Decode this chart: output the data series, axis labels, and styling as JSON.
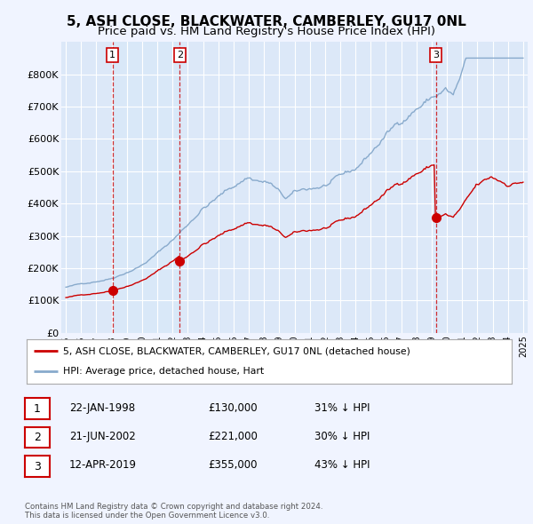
{
  "title": "5, ASH CLOSE, BLACKWATER, CAMBERLEY, GU17 0NL",
  "subtitle": "Price paid vs. HM Land Registry's House Price Index (HPI)",
  "ylim": [
    0,
    900000
  ],
  "yticks": [
    0,
    100000,
    200000,
    300000,
    400000,
    500000,
    600000,
    700000,
    800000
  ],
  "ytick_labels": [
    "£0",
    "£100K",
    "£200K",
    "£300K",
    "£400K",
    "£500K",
    "£600K",
    "£700K",
    "£800K"
  ],
  "background_color": "#f0f4ff",
  "plot_bg_color": "#dce8f8",
  "grid_color": "#ffffff",
  "red_line_color": "#cc0000",
  "blue_line_color": "#88aacc",
  "shade_color": "#c8d8f0",
  "sale_dates": [
    1998.06,
    2002.47,
    2019.28
  ],
  "sale_prices": [
    130000,
    221000,
    355000
  ],
  "sale_labels": [
    "1",
    "2",
    "3"
  ],
  "vline_color": "#cc0000",
  "legend_entries": [
    "5, ASH CLOSE, BLACKWATER, CAMBERLEY, GU17 0NL (detached house)",
    "HPI: Average price, detached house, Hart"
  ],
  "table_rows": [
    {
      "num": "1",
      "date": "22-JAN-1998",
      "price": "£130,000",
      "hpi": "31% ↓ HPI"
    },
    {
      "num": "2",
      "date": "21-JUN-2002",
      "price": "£221,000",
      "hpi": "30% ↓ HPI"
    },
    {
      "num": "3",
      "date": "12-APR-2019",
      "price": "£355,000",
      "hpi": "43% ↓ HPI"
    }
  ],
  "footer": "Contains HM Land Registry data © Crown copyright and database right 2024.\nThis data is licensed under the Open Government Licence v3.0.",
  "title_fontsize": 11,
  "subtitle_fontsize": 9.5
}
